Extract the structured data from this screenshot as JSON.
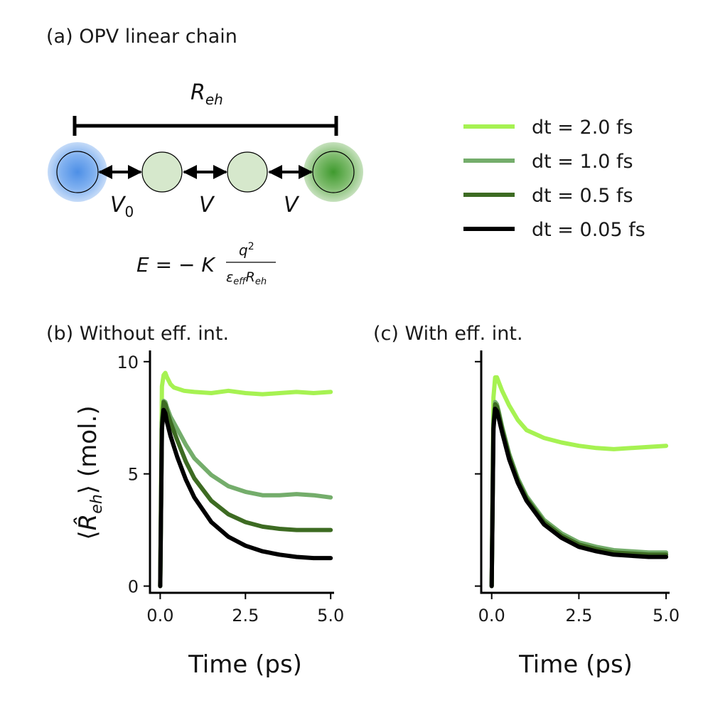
{
  "figure": {
    "panel_a_title": "(a) OPV linear chain",
    "diagram": {
      "distance_label": "R",
      "distance_sub": "eh",
      "coupling_labels": [
        {
          "main": "V",
          "sub": "0"
        },
        {
          "main": "V",
          "sub": ""
        },
        {
          "main": "V",
          "sub": ""
        }
      ],
      "energy_formula": {
        "lhs": "E = − K",
        "numerator": "q",
        "numerator_sup": "2",
        "denominator_a": "ε",
        "denominator_a_sub": "eff",
        "denominator_b": "R",
        "denominator_b_sub": "eh"
      },
      "colors": {
        "electron": "#4d8fe6",
        "hole": "#3f9a2e",
        "bridge": "#d6e8cc"
      }
    }
  },
  "chart_data": [
    {
      "type": "line",
      "panel": "b",
      "title": "(b) Without eff. int.",
      "xlabel": "Time (ps)",
      "ylabel": "⟨R̂eh⟩ (mol.)",
      "xlim": [
        -0.3,
        5.1
      ],
      "ylim": [
        -0.3,
        10.5
      ],
      "xticks": [
        0.0,
        2.5,
        5.0
      ],
      "xtick_labels": [
        "0.0",
        "2.5",
        "5.0"
      ],
      "yticks": [
        0,
        5,
        10
      ],
      "ytick_labels": [
        "0",
        "5",
        "10"
      ],
      "series": [
        {
          "name": "dt = 2.0 fs",
          "color": "#a6f252",
          "width": 6,
          "x": [
            0.0,
            0.05,
            0.1,
            0.15,
            0.2,
            0.3,
            0.4,
            0.5,
            0.7,
            1.0,
            1.5,
            2.0,
            2.5,
            3.0,
            3.5,
            4.0,
            4.5,
            5.0
          ],
          "y": [
            0.0,
            8.9,
            9.4,
            9.5,
            9.3,
            9.0,
            8.85,
            8.8,
            8.7,
            8.65,
            8.6,
            8.7,
            8.6,
            8.55,
            8.6,
            8.65,
            8.6,
            8.65
          ]
        },
        {
          "name": "dt = 1.0 fs",
          "color": "#74ad6b",
          "width": 6,
          "x": [
            0.0,
            0.05,
            0.1,
            0.15,
            0.2,
            0.3,
            0.5,
            0.75,
            1.0,
            1.5,
            2.0,
            2.5,
            3.0,
            3.5,
            4.0,
            4.5,
            5.0
          ],
          "y": [
            0.0,
            7.4,
            8.25,
            8.2,
            7.95,
            7.55,
            7.0,
            6.3,
            5.7,
            4.95,
            4.45,
            4.2,
            4.05,
            4.05,
            4.1,
            4.05,
            3.95
          ]
        },
        {
          "name": "dt = 0.5 fs",
          "color": "#3d6b22",
          "width": 6,
          "x": [
            0.0,
            0.05,
            0.1,
            0.15,
            0.2,
            0.3,
            0.5,
            0.75,
            1.0,
            1.5,
            2.0,
            2.5,
            3.0,
            3.5,
            4.0,
            4.5,
            5.0
          ],
          "y": [
            0.0,
            7.3,
            8.2,
            8.1,
            7.8,
            7.3,
            6.5,
            5.55,
            4.8,
            3.8,
            3.2,
            2.85,
            2.65,
            2.55,
            2.5,
            2.5,
            2.5
          ]
        },
        {
          "name": "dt = 0.05 fs",
          "color": "#000000",
          "width": 6,
          "x": [
            0.0,
            0.05,
            0.1,
            0.15,
            0.2,
            0.3,
            0.5,
            0.75,
            1.0,
            1.5,
            2.0,
            2.5,
            3.0,
            3.5,
            4.0,
            4.5,
            5.0
          ],
          "y": [
            0.0,
            7.0,
            7.85,
            7.7,
            7.3,
            6.7,
            5.75,
            4.75,
            3.95,
            2.85,
            2.2,
            1.8,
            1.55,
            1.4,
            1.3,
            1.25,
            1.25
          ]
        }
      ]
    },
    {
      "type": "line",
      "panel": "c",
      "title": "(c) With eff. int.",
      "xlabel": "Time (ps)",
      "xlim": [
        -0.3,
        5.1
      ],
      "ylim": [
        -0.3,
        10.5
      ],
      "xticks": [
        0.0,
        2.5,
        5.0
      ],
      "xtick_labels": [
        "0.0",
        "2.5",
        "5.0"
      ],
      "yticks": [
        0,
        5,
        10
      ],
      "series": [
        {
          "name": "dt = 2.0 fs",
          "color": "#a6f252",
          "width": 6,
          "x": [
            0.0,
            0.05,
            0.1,
            0.15,
            0.2,
            0.3,
            0.5,
            0.75,
            1.0,
            1.5,
            2.0,
            2.5,
            3.0,
            3.5,
            4.0,
            4.5,
            5.0
          ],
          "y": [
            0.0,
            8.4,
            9.3,
            9.3,
            9.1,
            8.7,
            8.05,
            7.4,
            6.95,
            6.6,
            6.4,
            6.25,
            6.15,
            6.1,
            6.15,
            6.2,
            6.25
          ]
        },
        {
          "name": "dt = 1.0 fs",
          "color": "#74ad6b",
          "width": 6,
          "x": [
            0.0,
            0.05,
            0.1,
            0.15,
            0.2,
            0.3,
            0.5,
            0.75,
            1.0,
            1.5,
            2.0,
            2.5,
            3.0,
            3.5,
            4.0,
            4.5,
            5.0
          ],
          "y": [
            0.0,
            7.3,
            8.2,
            8.1,
            7.8,
            7.1,
            5.9,
            4.8,
            4.0,
            2.95,
            2.35,
            1.95,
            1.75,
            1.6,
            1.55,
            1.5,
            1.5
          ]
        },
        {
          "name": "dt = 0.5 fs",
          "color": "#3d6b22",
          "width": 6,
          "x": [
            0.0,
            0.05,
            0.1,
            0.15,
            0.2,
            0.3,
            0.5,
            0.75,
            1.0,
            1.5,
            2.0,
            2.5,
            3.0,
            3.5,
            4.0,
            4.5,
            5.0
          ],
          "y": [
            0.0,
            7.2,
            8.1,
            8.0,
            7.7,
            7.0,
            5.8,
            4.7,
            3.9,
            2.85,
            2.25,
            1.85,
            1.65,
            1.5,
            1.45,
            1.4,
            1.4
          ]
        },
        {
          "name": "dt = 0.05 fs",
          "color": "#000000",
          "width": 6,
          "x": [
            0.0,
            0.05,
            0.1,
            0.15,
            0.2,
            0.3,
            0.5,
            0.75,
            1.0,
            1.5,
            2.0,
            2.5,
            3.0,
            3.5,
            4.0,
            4.5,
            5.0
          ],
          "y": [
            0.0,
            7.0,
            7.9,
            7.8,
            7.5,
            6.85,
            5.65,
            4.6,
            3.8,
            2.75,
            2.15,
            1.75,
            1.55,
            1.4,
            1.35,
            1.3,
            1.3
          ]
        }
      ]
    }
  ],
  "legend": {
    "placement": "upper-right",
    "entries": [
      {
        "label": "dt = 2.0 fs",
        "color": "#a6f252"
      },
      {
        "label": "dt = 1.0 fs",
        "color": "#74ad6b"
      },
      {
        "label": "dt = 0.5 fs",
        "color": "#3d6b22"
      },
      {
        "label": "dt = 0.05 fs",
        "color": "#000000"
      }
    ]
  }
}
